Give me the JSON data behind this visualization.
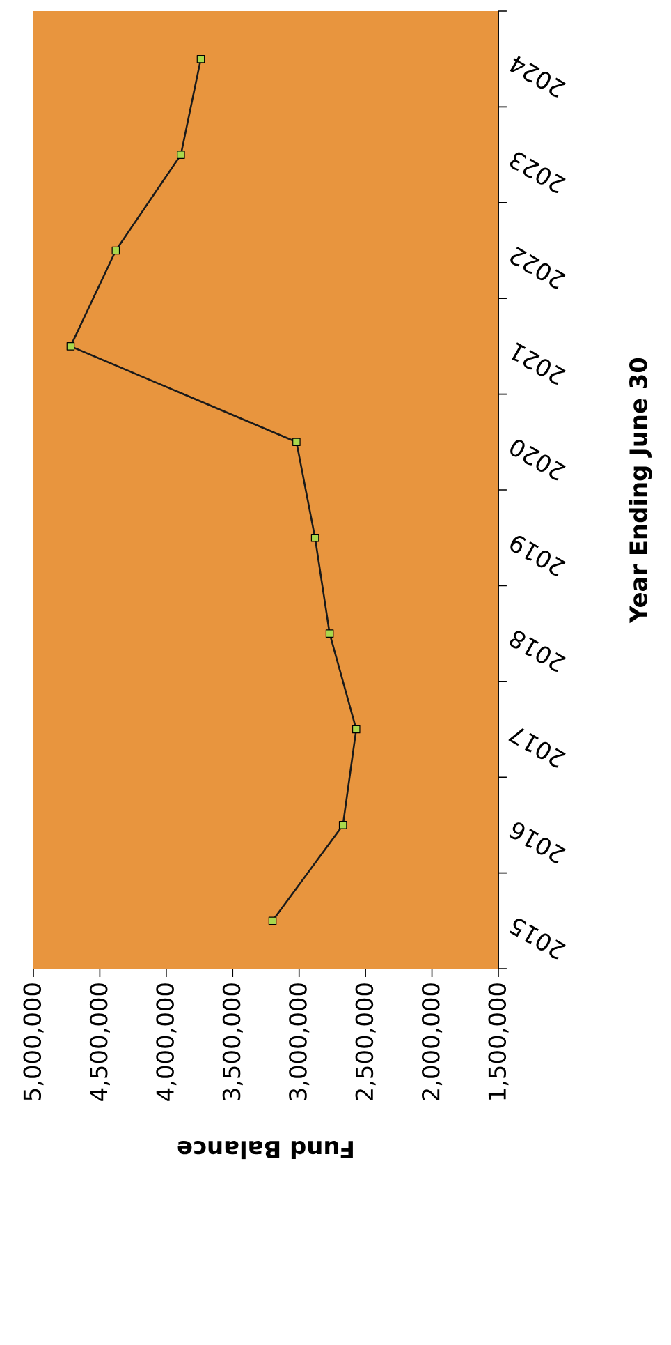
{
  "chart_data": {
    "type": "line",
    "orientation": "horizontal",
    "xlabel": "Fund Balance",
    "ylabel": "Year Ending June 30",
    "categories": [
      "2024",
      "2023",
      "2022",
      "2021",
      "2020",
      "2019",
      "2018",
      "2017",
      "2016",
      "2015"
    ],
    "series": [
      {
        "color": "#1a1a1a",
        "values": [
          3740000,
          3890000,
          4380000,
          4720000,
          3020000,
          2880000,
          2770000,
          2570000,
          2670000,
          3200000
        ]
      }
    ],
    "xlim": [
      5000000,
      1500000
    ],
    "xticks": [
      {
        "value": 5000000,
        "label": "5,000,000"
      },
      {
        "value": 4500000,
        "label": "4,500,000"
      },
      {
        "value": 4000000,
        "label": "4,000,000"
      },
      {
        "value": 3500000,
        "label": "3,500,000"
      },
      {
        "value": 3000000,
        "label": "3,000,000"
      },
      {
        "value": 2500000,
        "label": "2,500,000"
      },
      {
        "value": 2000000,
        "label": "2,000,000"
      },
      {
        "value": 1500000,
        "label": "1,500,000"
      }
    ],
    "grid": "x",
    "marker": "square",
    "line_style": "solid"
  }
}
